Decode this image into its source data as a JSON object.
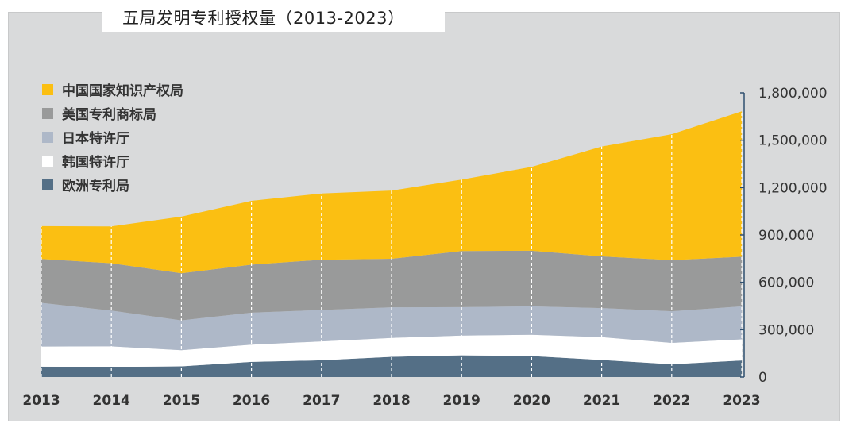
{
  "chart_data": {
    "type": "area",
    "stacked": true,
    "title": "五局发明专利授权量（2013-2023）",
    "x": [
      "2013",
      "2014",
      "2015",
      "2016",
      "2017",
      "2018",
      "2019",
      "2020",
      "2021",
      "2022",
      "2023"
    ],
    "series": [
      {
        "name": "欧洲专利局",
        "color": "#546f86",
        "values": [
          66000,
          64000,
          68000,
          96000,
          106000,
          128000,
          138000,
          133000,
          108000,
          81000,
          105000
        ]
      },
      {
        "name": "韩国特许厅",
        "color": "#ffffff",
        "values": [
          127000,
          130000,
          102000,
          109000,
          120000,
          120000,
          125000,
          135000,
          145000,
          135000,
          134000
        ]
      },
      {
        "name": "日本特许厅",
        "color": "#aeb8c8",
        "values": [
          277000,
          227000,
          189000,
          203000,
          199000,
          194000,
          180000,
          180000,
          184000,
          201000,
          209000
        ]
      },
      {
        "name": "美国专利商标局",
        "color": "#999a9a",
        "values": [
          278000,
          300000,
          298000,
          304000,
          318000,
          307000,
          355000,
          352000,
          327000,
          323000,
          314000
        ]
      },
      {
        "name": "中国国家知识产权局",
        "color": "#fbbf12",
        "values": [
          208000,
          233000,
          359000,
          404000,
          420000,
          432000,
          453000,
          531000,
          696000,
          798000,
          921000
        ]
      }
    ],
    "legend_order": [
      "中国国家知识产权局",
      "美国专利商标局",
      "日本特许厅",
      "韩国特许厅",
      "欧洲专利局"
    ],
    "ylim": [
      0,
      1800000
    ],
    "yticks": [
      "0",
      "300,000",
      "600,000",
      "900,000",
      "1,200,000",
      "1,500,000",
      "1,800,000"
    ],
    "ytick_values": [
      0,
      300000,
      600000,
      900000,
      1200000,
      1500000,
      1800000
    ],
    "y_axis_side": "right",
    "legend_position": "top-left",
    "gridlines": "vertical-dashed-white",
    "xlabel": "",
    "ylabel": ""
  }
}
